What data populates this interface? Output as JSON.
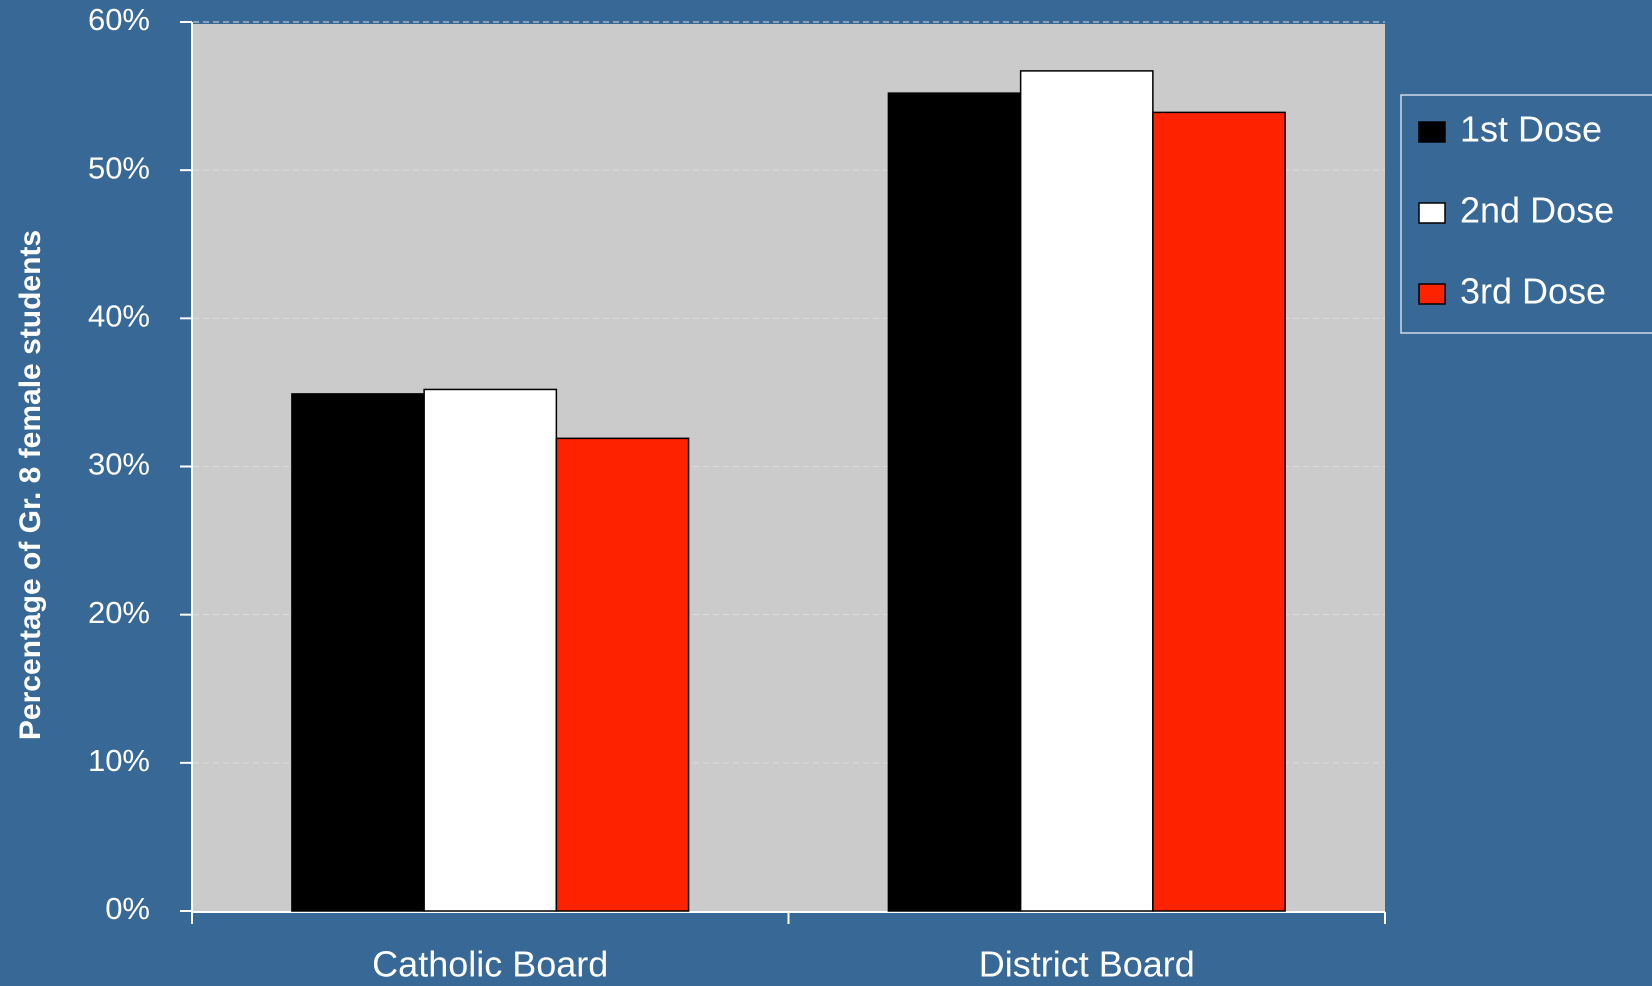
{
  "chart_data": {
    "type": "bar",
    "y_label": "Percentage of Gr. 8 female students",
    "categories": [
      "Catholic Board",
      "District Board"
    ],
    "series": [
      {
        "name": "1st Dose",
        "color": "#000000",
        "values": [
          34.9,
          55.2
        ]
      },
      {
        "name": "2nd Dose",
        "color": "#ffffff",
        "values": [
          35.2,
          56.7
        ]
      },
      {
        "name": "3rd Dose",
        "color": "#ff2200",
        "values": [
          31.9,
          53.9
        ]
      }
    ],
    "ylim": [
      0,
      60
    ],
    "yticks": [
      {
        "value": 0,
        "label": "0%"
      },
      {
        "value": 10,
        "label": "10%"
      },
      {
        "value": 20,
        "label": "20%"
      },
      {
        "value": 30,
        "label": "30%"
      },
      {
        "value": 40,
        "label": "40%"
      },
      {
        "value": 50,
        "label": "50%"
      },
      {
        "value": 60,
        "label": "60%"
      }
    ],
    "grid": true,
    "legend": "right"
  }
}
